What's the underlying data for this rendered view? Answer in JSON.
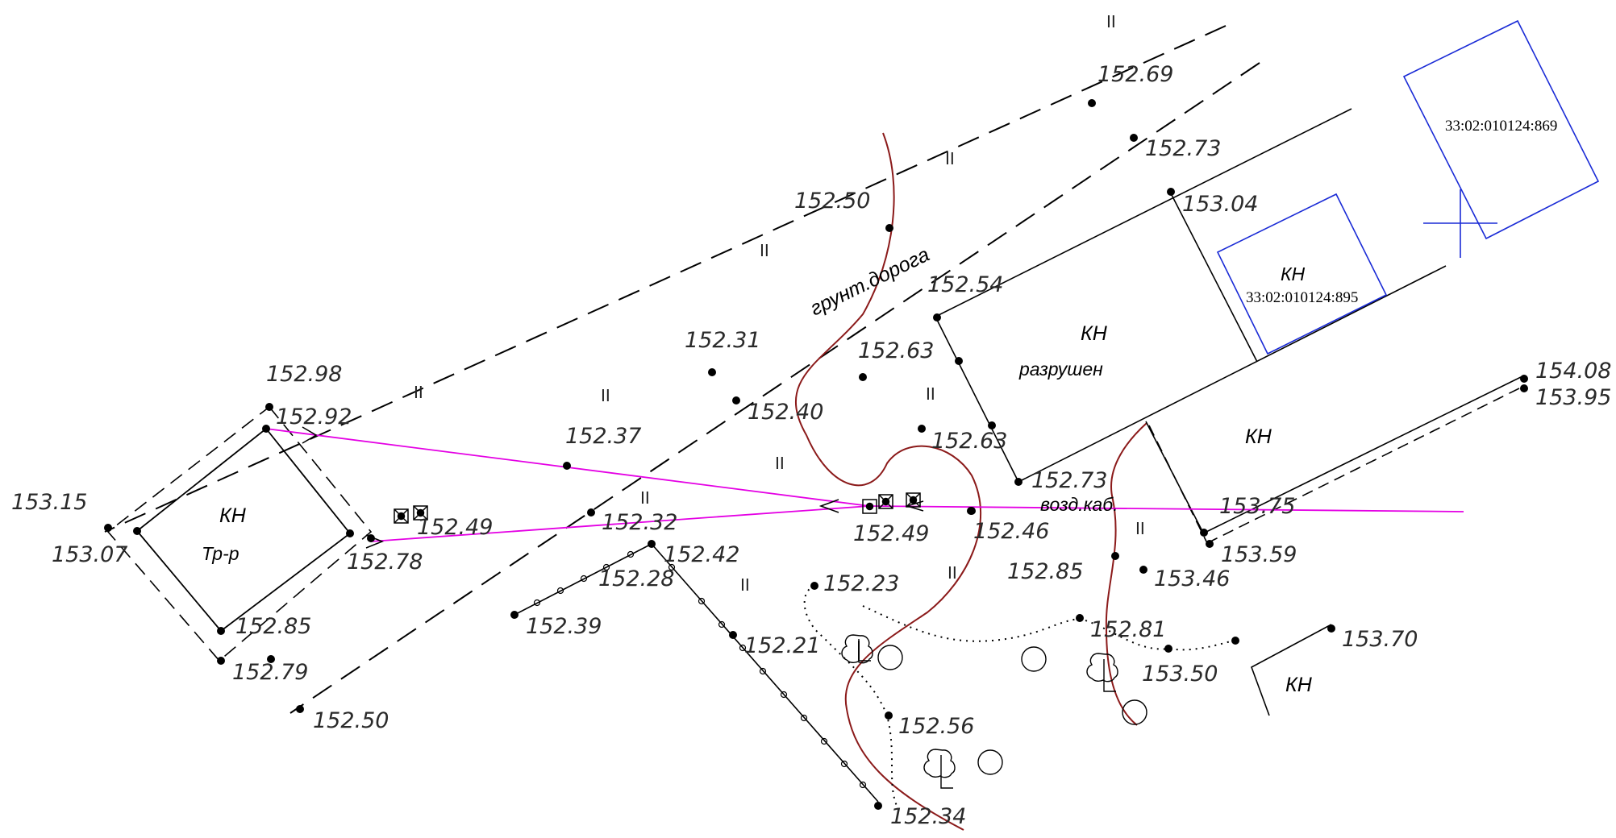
{
  "elevations": [
    "152.69",
    "152.73",
    "153.04",
    "152.50",
    "152.54",
    "152.31",
    "152.63",
    "152.98",
    "152.92",
    "152.40",
    "152.63",
    "152.37",
    "154.08",
    "153.95",
    "153.15",
    "152.49",
    "152.32",
    "152.73",
    "153.75",
    "153.07",
    "152.78",
    "152.49",
    "152.46",
    "152.42",
    "152.85",
    "153.59",
    "152.28",
    "152.23",
    "153.46",
    "152.39",
    "152.21",
    "152.81",
    "153.70",
    "152.85",
    "152.79",
    "153.50",
    "152.56",
    "152.50",
    "152.34"
  ],
  "labels": {
    "road": "грунт.дорога",
    "kn": "КН",
    "ruined": "разрушен",
    "transformer": "Тр-р",
    "overhead_cable": "возд.каб.",
    "grass": "II"
  },
  "parcels": {
    "p869": "33:02:010124:869",
    "p895": "33:02:010124:895"
  },
  "colors": {
    "parcel_lines": "#1a2bd6",
    "power_line": "#e400e4",
    "relief_contour": "#8b1a1a",
    "linework": "#000000"
  }
}
